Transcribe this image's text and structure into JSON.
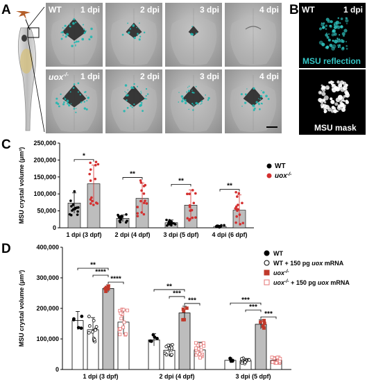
{
  "panel_A": {
    "letter": "A",
    "rows": [
      {
        "genotype": "WT",
        "tiles": [
          {
            "timepoint": "1 dpi",
            "msu_level": 0.8
          },
          {
            "timepoint": "2 dpi",
            "msu_level": 0.4
          },
          {
            "timepoint": "3 dpi",
            "msu_level": 0.1
          },
          {
            "timepoint": "4 dpi",
            "msu_level": 0.0
          }
        ]
      },
      {
        "genotype": "uox",
        "genotype_sup": "-/-",
        "tiles": [
          {
            "timepoint": "1 dpi",
            "msu_level": 0.8
          },
          {
            "timepoint": "2 dpi",
            "msu_level": 0.7
          },
          {
            "timepoint": "3 dpi",
            "msu_level": 0.7
          },
          {
            "timepoint": "4 dpi",
            "msu_level": 0.6
          }
        ]
      }
    ]
  },
  "panel_B": {
    "letter": "B",
    "genotype": "WT",
    "timepoint": "1 dpi",
    "top_label": "MSU reflection",
    "bottom_label": "MSU mask",
    "top_label_color": "#35c6c6"
  },
  "chart_data": [
    {
      "panel": "C",
      "type": "bar",
      "ylabel": "MSU crystal volume (μm³)",
      "ylim": [
        0,
        250000
      ],
      "yticks": [
        "0",
        "50,000",
        "100,000",
        "150,000",
        "200,000",
        "250,000"
      ],
      "categories": [
        "1 dpi (3 dpf)",
        "2 dpi (4 dpf)",
        "3 dpi (5 dpf)",
        "4 dpi (6 dpf)"
      ],
      "series": [
        {
          "name": "WT",
          "color": "#000000",
          "values": [
            73000,
            28000,
            15000,
            4000
          ],
          "sd": [
            30000,
            10000,
            8000,
            3000
          ]
        },
        {
          "name": "uox",
          "name_sup": "-/-",
          "color": "#d32f2f",
          "values": [
            130000,
            87000,
            67000,
            52000
          ],
          "sd": [
            55000,
            45000,
            45000,
            45000
          ]
        }
      ],
      "significance": [
        "*",
        "**",
        "**",
        "**"
      ],
      "legend": [
        {
          "label": "WT",
          "sup": ""
        },
        {
          "label": "uox",
          "sup": "-/-"
        }
      ]
    },
    {
      "panel": "D",
      "type": "bar",
      "ylabel": "MSU crystal volume (μm³)",
      "ylim": [
        0,
        400000
      ],
      "yticks": [
        "0",
        "100,000",
        "200,000",
        "300,000",
        "400,000"
      ],
      "categories": [
        "1 dpi (3 dpf)",
        "2 dpi (4 dpf)",
        "3 dpi (5 dpf)"
      ],
      "series": [
        {
          "name": "WT",
          "values": [
            160000,
            97000,
            30000
          ],
          "sd": [
            30000,
            20000,
            8000
          ]
        },
        {
          "name": "WT + 150 pg uox mRNA",
          "values": [
            130000,
            63000,
            28000
          ],
          "sd": [
            40000,
            20000,
            8000
          ]
        },
        {
          "name": "uox -/-",
          "values": [
            265000,
            185000,
            148000
          ],
          "sd": [
            12000,
            22000,
            15000
          ]
        },
        {
          "name": "uox -/- + 150 pg uox mRNA",
          "values": [
            155000,
            64000,
            30000
          ],
          "sd": [
            40000,
            25000,
            10000
          ]
        }
      ],
      "significance": [
        [
          "**",
          "****",
          "****"
        ],
        [
          "**",
          "***",
          "***"
        ],
        [
          "***",
          "***",
          "***"
        ]
      ],
      "legend": [
        {
          "parts": [
            "WT"
          ]
        },
        {
          "parts": [
            "WT + 150 pg ",
            "uox",
            " mRNA"
          ]
        },
        {
          "parts": [
            "uox",
            "-/-",
            ""
          ]
        },
        {
          "parts": [
            "uox",
            "-/-",
            " + 150 pg ",
            "uox",
            " mRNA"
          ]
        }
      ]
    }
  ]
}
